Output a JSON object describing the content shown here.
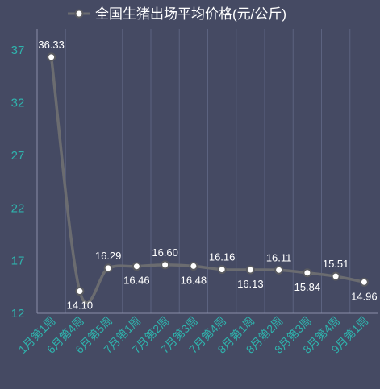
{
  "chart_data": {
    "type": "line",
    "title": "全国生猪出场平均价格(元/公斤)",
    "categories": [
      "1月第1周",
      "6月第4周",
      "6月第5周",
      "7月第1周",
      "7月第2周",
      "7月第3周",
      "7月第4周",
      "8月第1周",
      "8月第2周",
      "8月第3周",
      "8月第4周",
      "9月第1周"
    ],
    "series": [
      {
        "name": "全国生猪出场平均价格(元/公斤)",
        "values": [
          36.33,
          14.1,
          16.29,
          16.46,
          16.6,
          16.48,
          16.16,
          16.13,
          16.11,
          15.84,
          15.51,
          14.96
        ]
      }
    ],
    "data_labels": [
      "36.33",
      "14.10",
      "16.29",
      "16.46",
      "16.60",
      "16.48",
      "16.16",
      "16.13",
      "16.11",
      "15.84",
      "15.51",
      "14.96"
    ],
    "label_positions": [
      "above",
      "below",
      "above",
      "below",
      "above",
      "below",
      "above",
      "below",
      "above",
      "below",
      "above",
      "below"
    ],
    "yticks": [
      "12",
      "17",
      "22",
      "27",
      "32",
      "37"
    ],
    "ylim": [
      12,
      39
    ],
    "xlabel": "",
    "ylabel": "",
    "grid": "vertical",
    "legend": "top",
    "smooth": true,
    "colors": {
      "background": "#454a63",
      "line": "#6b6c70",
      "marker_fill": "#ffffff",
      "marker_stroke": "#5a5b60",
      "grid": "#5c6380",
      "axis": "#8a8fa8",
      "tick_text": "#2fb3ad",
      "label_text": "#ffffff"
    }
  }
}
